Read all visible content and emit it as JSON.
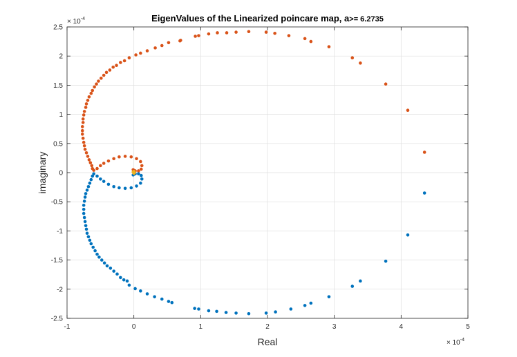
{
  "chart_data": {
    "type": "scatter",
    "title_main": "EigenValues of the Linearized poincare map, a",
    "title_suffix": ">= 6.2735",
    "xlabel": "Real",
    "ylabel": "imaginary",
    "x_multiplier_base": "× 10",
    "x_multiplier_exp": "-4",
    "y_multiplier_base": "× 10",
    "y_multiplier_exp": "-4",
    "xlim": [
      -1,
      5
    ],
    "ylim": [
      -2.5,
      2.5
    ],
    "xticks": [
      -1,
      0,
      1,
      2,
      3,
      4,
      5
    ],
    "yticks": [
      -2.5,
      -2,
      -1.5,
      -1,
      -0.5,
      0,
      0.5,
      1,
      1.5,
      2,
      2.5
    ],
    "grid": true,
    "series": [
      {
        "color": "#D95319",
        "points": [
          [
            4.35,
            0.35
          ],
          [
            4.1,
            1.07
          ],
          [
            3.77,
            1.52
          ],
          [
            3.39,
            1.88
          ],
          [
            3.27,
            1.97
          ],
          [
            2.92,
            2.16
          ],
          [
            2.65,
            2.25
          ],
          [
            2.56,
            2.3
          ],
          [
            2.32,
            2.35
          ],
          [
            2.11,
            2.39
          ],
          [
            1.98,
            2.41
          ],
          [
            1.72,
            2.42
          ],
          [
            1.53,
            2.41
          ],
          [
            1.39,
            2.4
          ],
          [
            1.25,
            2.4
          ],
          [
            1.12,
            2.38
          ],
          [
            0.97,
            2.35
          ],
          [
            0.92,
            2.34
          ],
          [
            0.7,
            2.27
          ],
          [
            0.69,
            2.26
          ],
          [
            0.52,
            2.23
          ],
          [
            0.42,
            2.18
          ],
          [
            0.32,
            2.14
          ],
          [
            0.2,
            2.09
          ],
          [
            0.1,
            2.05
          ],
          [
            0.03,
            2.02
          ],
          [
            -0.07,
            1.97
          ],
          [
            -0.14,
            1.92
          ],
          [
            -0.2,
            1.89
          ],
          [
            -0.26,
            1.84
          ],
          [
            -0.31,
            1.81
          ],
          [
            -0.36,
            1.76
          ],
          [
            -0.41,
            1.72
          ],
          [
            -0.45,
            1.67
          ],
          [
            -0.49,
            1.62
          ],
          [
            -0.53,
            1.57
          ],
          [
            -0.56,
            1.52
          ],
          [
            -0.59,
            1.47
          ],
          [
            -0.62,
            1.41
          ],
          [
            -0.64,
            1.36
          ],
          [
            -0.67,
            1.3
          ],
          [
            -0.69,
            1.24
          ],
          [
            -0.71,
            1.18
          ],
          [
            -0.72,
            1.12
          ],
          [
            -0.74,
            1.05
          ],
          [
            -0.75,
            0.99
          ],
          [
            -0.76,
            0.92
          ],
          [
            -0.76,
            0.86
          ],
          [
            -0.77,
            0.79
          ],
          [
            -0.77,
            0.72
          ],
          [
            -0.77,
            0.66
          ],
          [
            -0.76,
            0.59
          ],
          [
            -0.75,
            0.52
          ],
          [
            -0.74,
            0.46
          ],
          [
            -0.73,
            0.4
          ],
          [
            -0.71,
            0.34
          ],
          [
            -0.69,
            0.28
          ],
          [
            -0.67,
            0.22
          ],
          [
            -0.65,
            0.17
          ],
          [
            -0.63,
            0.12
          ],
          [
            -0.62,
            0.07
          ],
          [
            -0.6,
            0.04
          ],
          [
            -0.55,
            0.07
          ],
          [
            -0.5,
            0.12
          ],
          [
            -0.45,
            0.16
          ],
          [
            -0.38,
            0.2
          ],
          [
            -0.3,
            0.24
          ],
          [
            -0.22,
            0.27
          ],
          [
            -0.13,
            0.28
          ],
          [
            -0.04,
            0.27
          ],
          [
            0.04,
            0.24
          ],
          [
            0.1,
            0.19
          ],
          [
            0.12,
            0.12
          ],
          [
            0.11,
            0.06
          ],
          [
            0.07,
            0.03
          ],
          [
            0.02,
            0.03
          ],
          [
            -0.01,
            0.05
          ]
        ]
      },
      {
        "color": "#0072BD",
        "points": [
          [
            4.35,
            -0.35
          ],
          [
            4.1,
            -1.07
          ],
          [
            3.77,
            -1.52
          ],
          [
            3.39,
            -1.86
          ],
          [
            3.27,
            -1.95
          ],
          [
            2.92,
            -2.13
          ],
          [
            2.65,
            -2.24
          ],
          [
            2.56,
            -2.28
          ],
          [
            2.35,
            -2.34
          ],
          [
            2.12,
            -2.39
          ],
          [
            1.98,
            -2.41
          ],
          [
            1.72,
            -2.42
          ],
          [
            1.53,
            -2.41
          ],
          [
            1.38,
            -2.4
          ],
          [
            1.24,
            -2.38
          ],
          [
            1.12,
            -2.37
          ],
          [
            0.97,
            -2.34
          ],
          [
            0.91,
            -2.33
          ],
          [
            0.57,
            -2.23
          ],
          [
            0.52,
            -2.21
          ],
          [
            0.42,
            -2.17
          ],
          [
            0.31,
            -2.13
          ],
          [
            0.2,
            -2.08
          ],
          [
            0.1,
            -2.03
          ],
          [
            0.02,
            -1.99
          ],
          [
            -0.07,
            -1.93
          ],
          [
            -0.1,
            -1.86
          ],
          [
            -0.15,
            -1.84
          ],
          [
            -0.2,
            -1.8
          ],
          [
            -0.25,
            -1.74
          ],
          [
            -0.3,
            -1.69
          ],
          [
            -0.35,
            -1.64
          ],
          [
            -0.4,
            -1.6
          ],
          [
            -0.44,
            -1.55
          ],
          [
            -0.48,
            -1.5
          ],
          [
            -0.52,
            -1.45
          ],
          [
            -0.55,
            -1.4
          ],
          [
            -0.58,
            -1.34
          ],
          [
            -0.61,
            -1.28
          ],
          [
            -0.64,
            -1.22
          ],
          [
            -0.66,
            -1.16
          ],
          [
            -0.68,
            -1.1
          ],
          [
            -0.7,
            -1.04
          ],
          [
            -0.71,
            -0.97
          ],
          [
            -0.72,
            -0.91
          ],
          [
            -0.73,
            -0.84
          ],
          [
            -0.74,
            -0.77
          ],
          [
            -0.75,
            -0.7
          ],
          [
            -0.75,
            -0.63
          ],
          [
            -0.75,
            -0.56
          ],
          [
            -0.74,
            -0.49
          ],
          [
            -0.73,
            -0.42
          ],
          [
            -0.72,
            -0.36
          ],
          [
            -0.7,
            -0.3
          ],
          [
            -0.68,
            -0.24
          ],
          [
            -0.66,
            -0.18
          ],
          [
            -0.64,
            -0.12
          ],
          [
            -0.62,
            -0.06
          ],
          [
            -0.6,
            -0.02
          ],
          [
            -0.55,
            -0.06
          ],
          [
            -0.5,
            -0.11
          ],
          [
            -0.45,
            -0.15
          ],
          [
            -0.38,
            -0.2
          ],
          [
            -0.3,
            -0.24
          ],
          [
            -0.22,
            -0.26
          ],
          [
            -0.13,
            -0.27
          ],
          [
            -0.04,
            -0.26
          ],
          [
            0.04,
            -0.23
          ],
          [
            0.1,
            -0.18
          ],
          [
            0.12,
            -0.11
          ],
          [
            0.11,
            -0.05
          ],
          [
            0.07,
            -0.02
          ],
          [
            0.02,
            -0.02
          ],
          [
            -0.01,
            -0.04
          ]
        ]
      },
      {
        "color": "#EDB120",
        "points": [
          [
            0.0,
            0.02
          ],
          [
            0.01,
            0.0
          ],
          [
            0.0,
            -0.01
          ],
          [
            -0.01,
            0.01
          ]
        ]
      }
    ]
  }
}
